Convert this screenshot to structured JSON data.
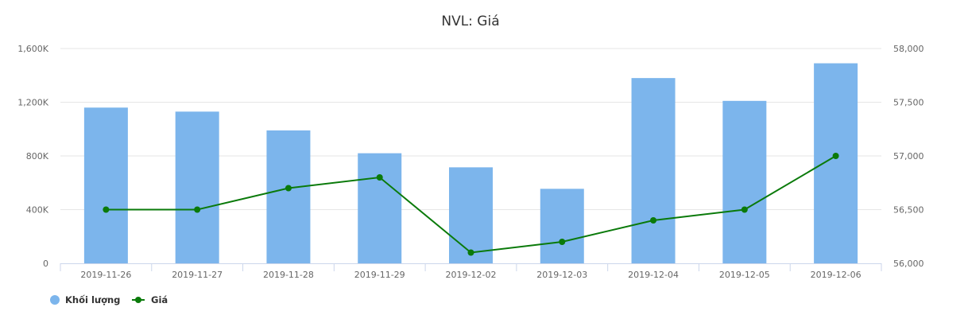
{
  "chart_data": {
    "type": "bar",
    "title": "NVL: Giá",
    "categories": [
      "2019-11-26",
      "2019-11-27",
      "2019-11-28",
      "2019-11-29",
      "2019-12-02",
      "2019-12-03",
      "2019-12-04",
      "2019-12-05",
      "2019-12-06"
    ],
    "series": [
      {
        "name": "Khối lượng",
        "type": "bar",
        "axis": "left",
        "color": "#7cb5ec",
        "values": [
          1160000,
          1130000,
          990000,
          820000,
          715000,
          555000,
          1380000,
          1210000,
          1490000
        ]
      },
      {
        "name": "Giá",
        "type": "line",
        "axis": "right",
        "color": "#0a7a0a",
        "values": [
          56500,
          56500,
          56700,
          56800,
          56100,
          56200,
          56400,
          56500,
          57000
        ]
      }
    ],
    "y_left": {
      "ylim": [
        0,
        1600000
      ],
      "ticks": [
        0,
        400000,
        800000,
        1200000,
        1600000
      ],
      "tick_labels": [
        "0",
        "400K",
        "800K",
        "1,200K",
        "1,600K"
      ]
    },
    "y_right": {
      "ylim": [
        56000,
        58000
      ],
      "ticks": [
        56000,
        56500,
        57000,
        57500,
        58000
      ],
      "tick_labels": [
        "56,000",
        "56,500",
        "57,000",
        "57,500",
        "58,000"
      ]
    },
    "grid": true,
    "legend": "bottom-left"
  }
}
